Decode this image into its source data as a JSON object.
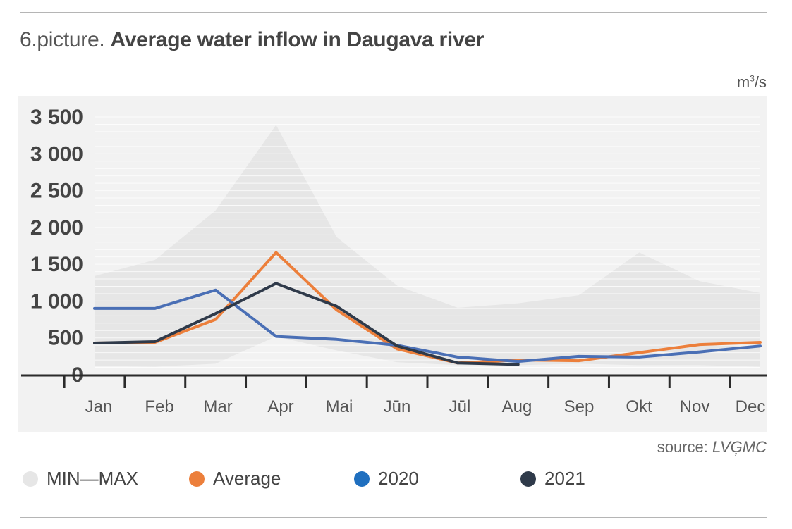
{
  "title_prefix": "6.picture.",
  "title_main": "Average water inflow in Daugava river",
  "unit_base": "m",
  "unit_sup": "3",
  "unit_tail": "/s",
  "source_label": "source: ",
  "source_name": "LVĢMC",
  "colors": {
    "band": "#e6e6e6",
    "average": "#ec7f3b",
    "y2020": "#4a6fb5",
    "y2021": "#2f3a4a",
    "panel": "#f2f2f2",
    "grid": "#ffffff"
  },
  "chart_data": {
    "type": "line",
    "title": "Average water inflow in Daugava river",
    "ylabel": "m³/s",
    "ylim": [
      0,
      3500
    ],
    "yticks": [
      0,
      500,
      1000,
      1500,
      2000,
      2500,
      3000,
      3500
    ],
    "ytick_labels": [
      "0",
      "500",
      "1 000",
      "1 500",
      "2 000",
      "2 500",
      "3 000",
      "3 500"
    ],
    "categories": [
      "Jan",
      "Feb",
      "Mar",
      "Apr",
      "Mai",
      "Jūn",
      "Jūl",
      "Aug",
      "Sep",
      "Okt",
      "Nov",
      "Dec"
    ],
    "band": {
      "name": "MIN—MAX",
      "min": [
        120,
        110,
        150,
        520,
        330,
        170,
        130,
        130,
        150,
        130,
        130,
        110
      ],
      "max": [
        1340,
        1560,
        2230,
        3390,
        1870,
        1210,
        910,
        970,
        1080,
        1660,
        1270,
        1110
      ]
    },
    "series": [
      {
        "name": "Average",
        "values": [
          430,
          440,
          750,
          1660,
          880,
          350,
          160,
          200,
          190,
          300,
          410,
          440
        ]
      },
      {
        "name": "2020",
        "values": [
          900,
          900,
          1150,
          520,
          480,
          400,
          240,
          180,
          250,
          240,
          310,
          390
        ]
      },
      {
        "name": "2021",
        "values": [
          430,
          450,
          830,
          1240,
          930,
          390,
          160,
          140,
          null,
          null,
          null,
          null
        ]
      }
    ],
    "grid": true,
    "legend_position": "bottom"
  },
  "legend": [
    {
      "label": "MIN—MAX",
      "color": "#e6e6e6"
    },
    {
      "label": "Average",
      "color": "#ec7f3b"
    },
    {
      "label": "2020",
      "color": "#1f6fbf"
    },
    {
      "label": "2021",
      "color": "#2f3a4a"
    }
  ]
}
